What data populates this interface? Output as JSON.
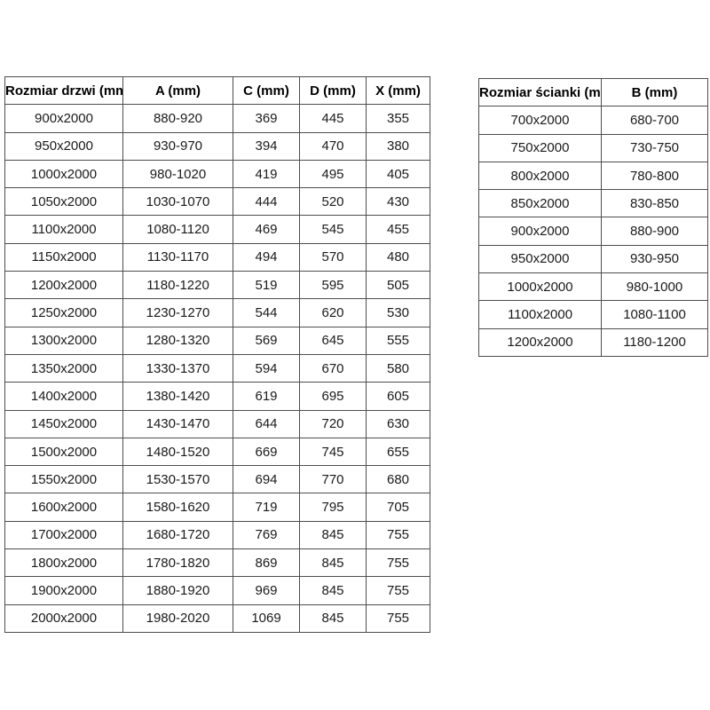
{
  "doors_table": {
    "headers": [
      "Rozmiar drzwi (mm)",
      "A (mm)",
      "C (mm)",
      "D (mm)",
      "X (mm)"
    ],
    "rows": [
      [
        "900x2000",
        "880-920",
        "369",
        "445",
        "355"
      ],
      [
        "950x2000",
        "930-970",
        "394",
        "470",
        "380"
      ],
      [
        "1000x2000",
        "980-1020",
        "419",
        "495",
        "405"
      ],
      [
        "1050x2000",
        "1030-1070",
        "444",
        "520",
        "430"
      ],
      [
        "1100x2000",
        "1080-1120",
        "469",
        "545",
        "455"
      ],
      [
        "1150x2000",
        "1130-1170",
        "494",
        "570",
        "480"
      ],
      [
        "1200x2000",
        "1180-1220",
        "519",
        "595",
        "505"
      ],
      [
        "1250x2000",
        "1230-1270",
        "544",
        "620",
        "530"
      ],
      [
        "1300x2000",
        "1280-1320",
        "569",
        "645",
        "555"
      ],
      [
        "1350x2000",
        "1330-1370",
        "594",
        "670",
        "580"
      ],
      [
        "1400x2000",
        "1380-1420",
        "619",
        "695",
        "605"
      ],
      [
        "1450x2000",
        "1430-1470",
        "644",
        "720",
        "630"
      ],
      [
        "1500x2000",
        "1480-1520",
        "669",
        "745",
        "655"
      ],
      [
        "1550x2000",
        "1530-1570",
        "694",
        "770",
        "680"
      ],
      [
        "1600x2000",
        "1580-1620",
        "719",
        "795",
        "705"
      ],
      [
        "1700x2000",
        "1680-1720",
        "769",
        "845",
        "755"
      ],
      [
        "1800x2000",
        "1780-1820",
        "869",
        "845",
        "755"
      ],
      [
        "1900x2000",
        "1880-1920",
        "969",
        "845",
        "755"
      ],
      [
        "2000x2000",
        "1980-2020",
        "1069",
        "845",
        "755"
      ]
    ]
  },
  "walls_table": {
    "headers": [
      "Rozmiar ścianki (mm)",
      "B (mm)"
    ],
    "rows": [
      [
        "700x2000",
        "680-700"
      ],
      [
        "750x2000",
        "730-750"
      ],
      [
        "800x2000",
        "780-800"
      ],
      [
        "850x2000",
        "830-850"
      ],
      [
        "900x2000",
        "880-900"
      ],
      [
        "950x2000",
        "930-950"
      ],
      [
        "1000x2000",
        "980-1000"
      ],
      [
        "1100x2000",
        "1080-1100"
      ],
      [
        "1200x2000",
        "1180-1200"
      ]
    ]
  },
  "colors": {
    "table_border": "#4d4d4d",
    "text": "#1a1a1a",
    "background": "#ffffff"
  }
}
